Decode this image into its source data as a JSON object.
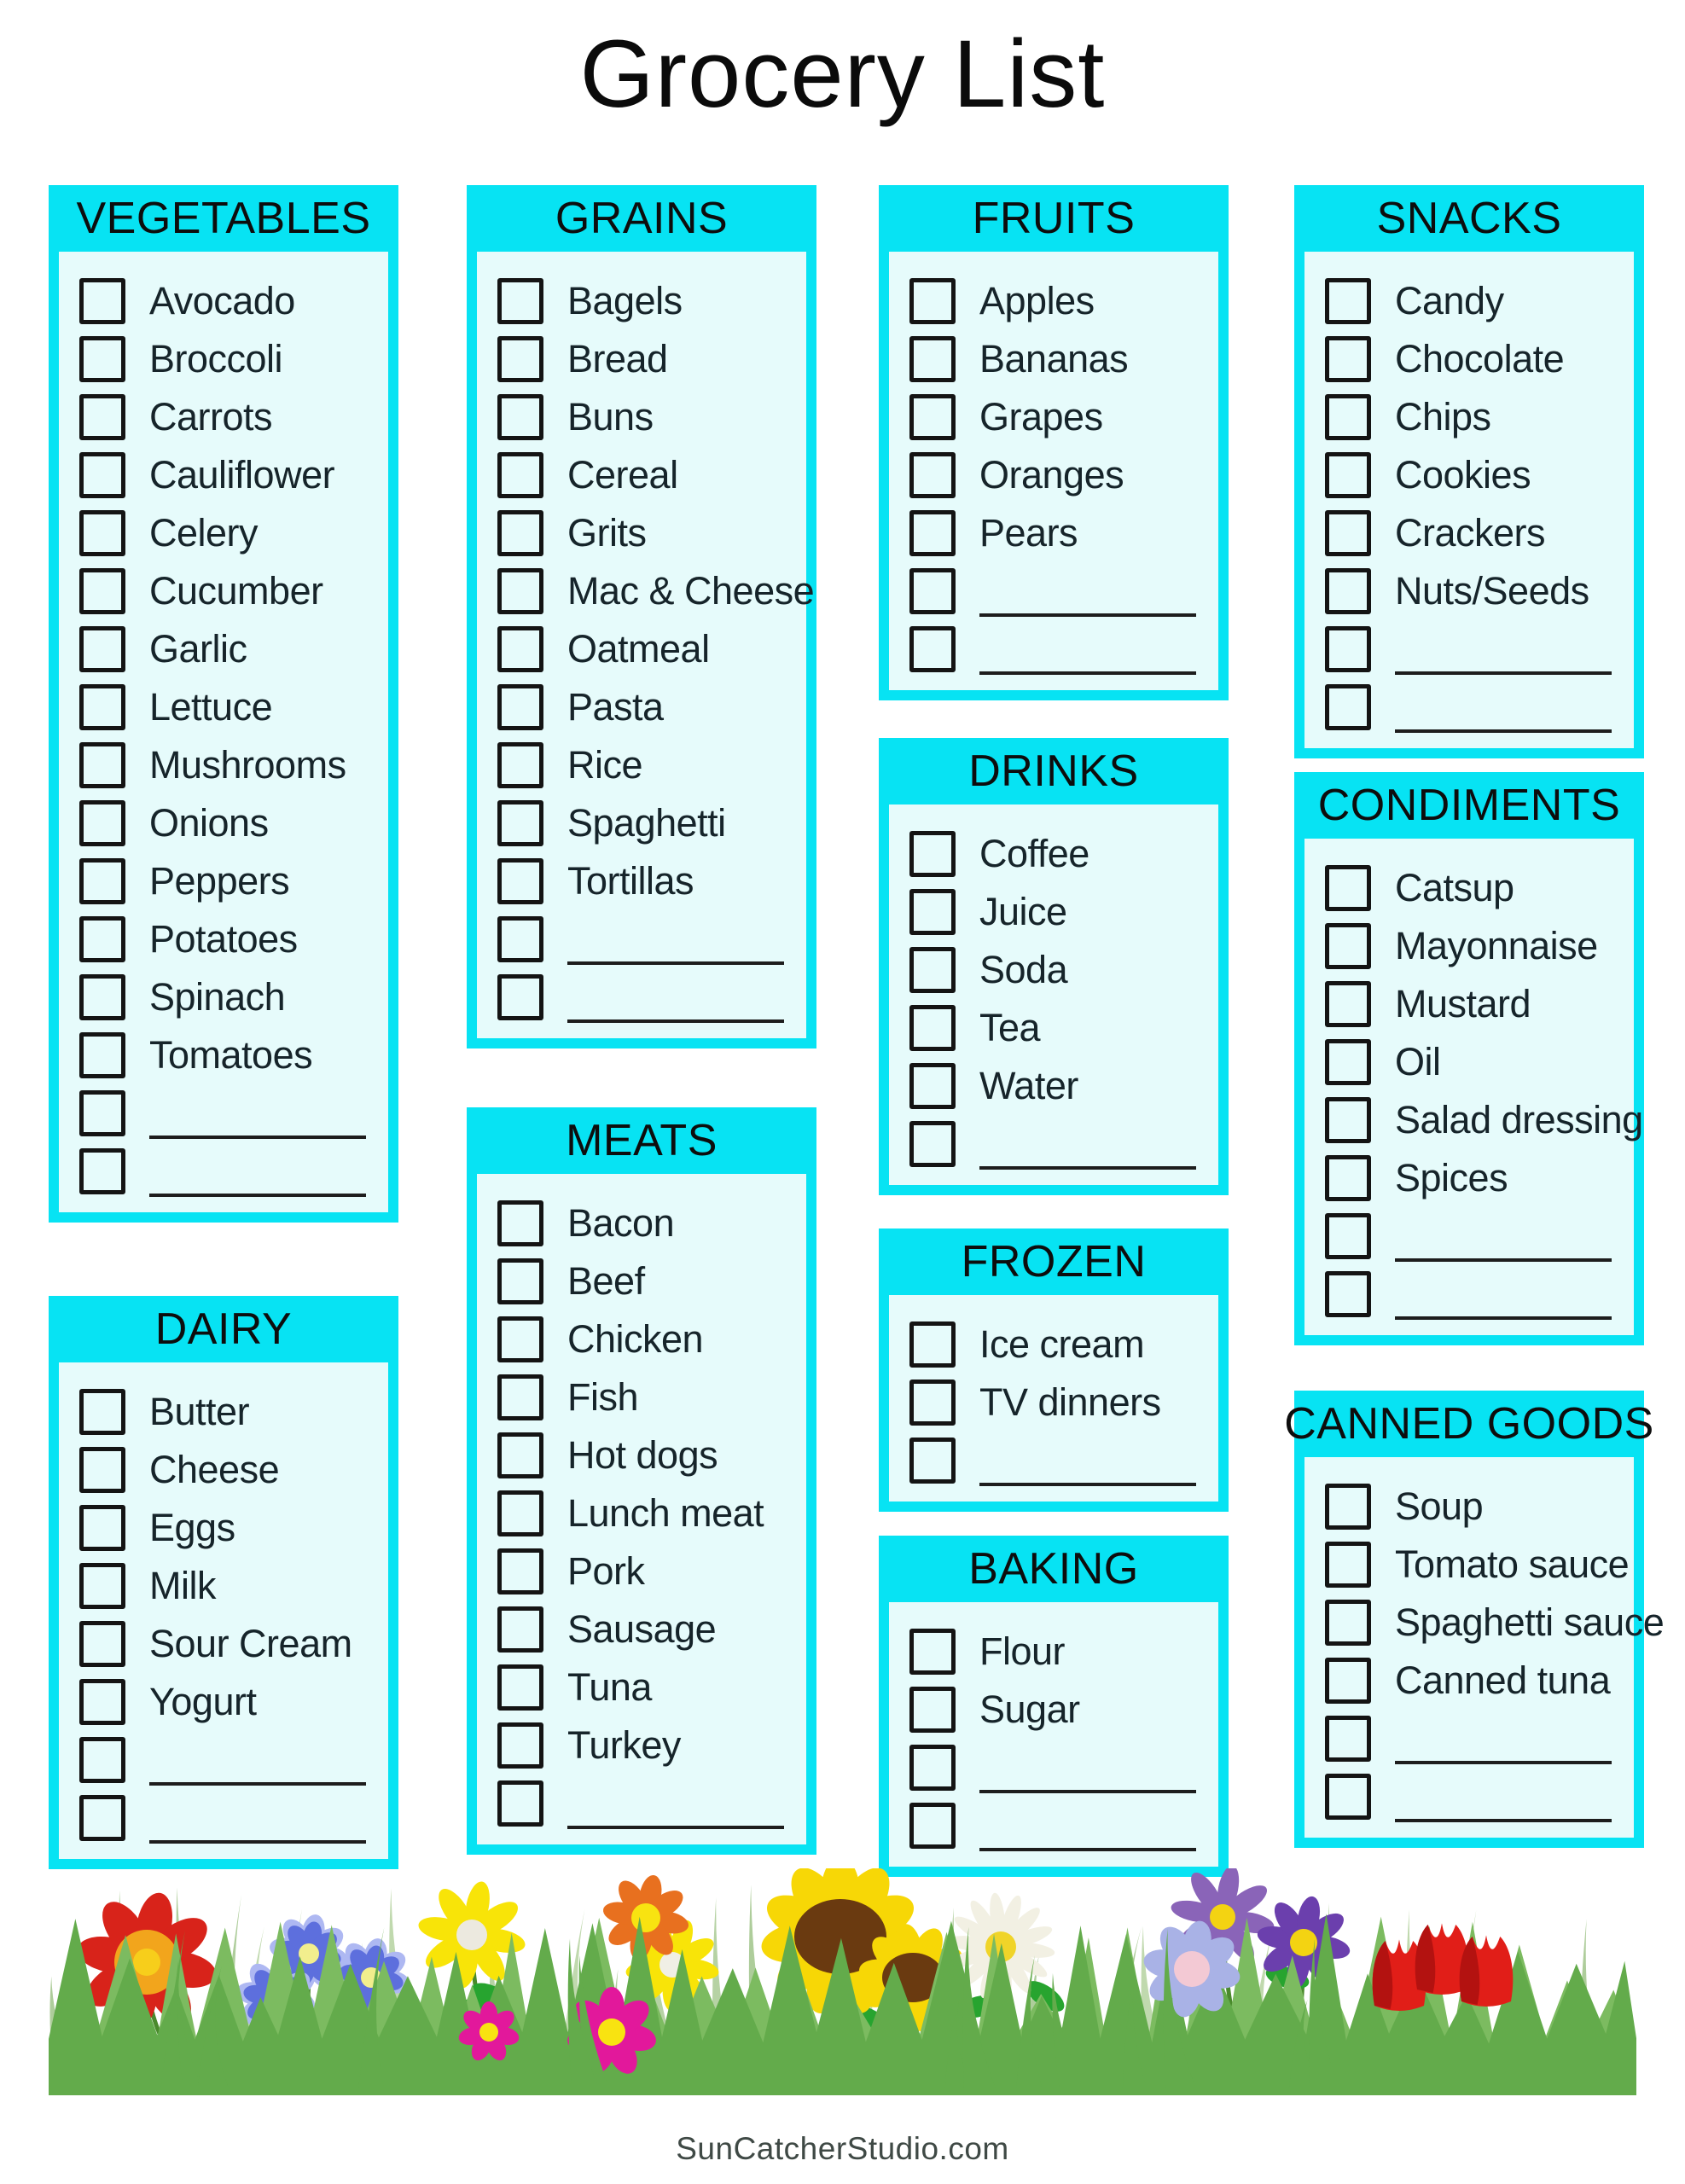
{
  "page": {
    "title": "Grocery List",
    "footer": "SunCatcherStudio.com"
  },
  "colors": {
    "accent": "#07e3f3",
    "panel_background": "#e6fbfb",
    "text": "#141414",
    "footer_text": "#3f4945"
  },
  "checkbox_state": "unchecked",
  "categories": [
    {
      "name": "VEGETABLES",
      "items": [
        "Avocado",
        "Broccoli",
        "Carrots",
        "Cauliflower",
        "Celery",
        "Cucumber",
        "Garlic",
        "Lettuce",
        "Mushrooms",
        "Onions",
        "Peppers",
        "Potatoes",
        "Spinach",
        "Tomatoes"
      ],
      "blank_rows": 2
    },
    {
      "name": "DAIRY",
      "items": [
        "Butter",
        "Cheese",
        "Eggs",
        "Milk",
        "Sour Cream",
        "Yogurt"
      ],
      "blank_rows": 2
    },
    {
      "name": "GRAINS",
      "items": [
        "Bagels",
        "Bread",
        "Buns",
        "Cereal",
        "Grits",
        "Mac & Cheese",
        "Oatmeal",
        "Pasta",
        "Rice",
        "Spaghetti",
        "Tortillas"
      ],
      "blank_rows": 2
    },
    {
      "name": "MEATS",
      "items": [
        "Bacon",
        "Beef",
        "Chicken",
        "Fish",
        "Hot dogs",
        "Lunch meat",
        "Pork",
        "Sausage",
        "Tuna",
        "Turkey"
      ],
      "blank_rows": 1
    },
    {
      "name": "FRUITS",
      "items": [
        "Apples",
        "Bananas",
        "Grapes",
        "Oranges",
        "Pears"
      ],
      "blank_rows": 2
    },
    {
      "name": "DRINKS",
      "items": [
        "Coffee",
        "Juice",
        "Soda",
        "Tea",
        "Water"
      ],
      "blank_rows": 1
    },
    {
      "name": "FROZEN",
      "items": [
        "Ice cream",
        "TV dinners"
      ],
      "blank_rows": 1
    },
    {
      "name": "BAKING",
      "items": [
        "Flour",
        "Sugar"
      ],
      "blank_rows": 2
    },
    {
      "name": "SNACKS",
      "items": [
        "Candy",
        "Chocolate",
        "Chips",
        "Cookies",
        "Crackers",
        "Nuts/Seeds"
      ],
      "blank_rows": 2
    },
    {
      "name": "CONDIMENTS",
      "items": [
        "Catsup",
        "Mayonnaise",
        "Mustard",
        "Oil",
        "Salad dressing",
        "Spices"
      ],
      "blank_rows": 2
    },
    {
      "name": "CANNED GOODS",
      "items": [
        "Soup",
        "Tomato sauce",
        "Spaghetti sauce",
        "Canned tuna"
      ],
      "blank_rows": 2
    }
  ]
}
